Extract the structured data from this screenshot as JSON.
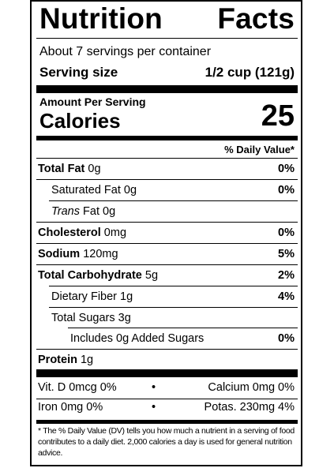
{
  "label": {
    "title_left": "Nutrition",
    "title_right": "Facts",
    "servings_per_container": "About 7 servings per container",
    "serving_size_label": "Serving size",
    "serving_size_value": "1/2 cup (121g)",
    "amount_per_serving": "Amount Per Serving",
    "calories_label": "Calories",
    "calories_value": "25",
    "daily_value_header": "% Daily Value*"
  },
  "nutrients": {
    "total_fat": {
      "name": "Total Fat",
      "amount": "0g",
      "dv": "0%"
    },
    "saturated_fat": {
      "name": "Saturated Fat",
      "amount": "0g",
      "dv": "0%"
    },
    "trans_fat": {
      "name_italic": "Trans",
      "name": "Fat",
      "amount": "0g"
    },
    "cholesterol": {
      "name": "Cholesterol",
      "amount": "0mg",
      "dv": "0%"
    },
    "sodium": {
      "name": "Sodium",
      "amount": "120mg",
      "dv": "5%"
    },
    "total_carbohydrate": {
      "name": "Total Carbohydrate",
      "amount": "5g",
      "dv": "2%"
    },
    "dietary_fiber": {
      "name": "Dietary Fiber",
      "amount": "1g",
      "dv": "4%"
    },
    "total_sugars": {
      "name": "Total Sugars",
      "amount": "3g"
    },
    "added_sugars": {
      "name": "Includes 0g Added Sugars",
      "dv": "0%"
    },
    "protein": {
      "name": "Protein",
      "amount": "1g"
    }
  },
  "vitamins": {
    "vit_d": "Vit. D 0mcg 0%",
    "calcium": "Calcium 0mg 0%",
    "iron": "Iron 0mg 0%",
    "potassium": "Potas. 230mg 4%",
    "separator": "•"
  },
  "footnote": "* The % Daily Value (DV) tells you how much a nutrient in a serving of food contributes to a daily diet. 2,000 calories a day is used for general nutrition advice."
}
